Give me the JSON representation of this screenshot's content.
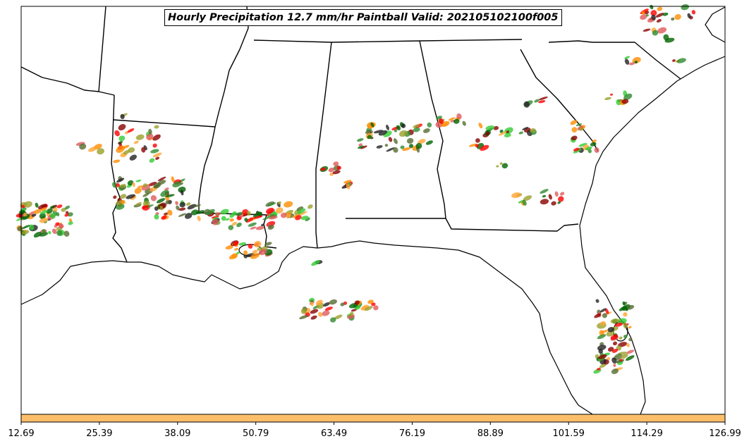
{
  "map": {
    "title": "Hourly Precipitation 12.7 mm/hr Paintball Valid: 202105102100f005",
    "region": "Southeastern United States",
    "colorbar": {
      "fill_color": "#FDBE6A",
      "tick_labels": [
        "12.69",
        "25.39",
        "38.09",
        "50.79",
        "63.49",
        "76.19",
        "88.89",
        "101.59",
        "114.29",
        "126.99"
      ]
    },
    "paintball_colors": [
      "#FF0000",
      "#E05A5A",
      "#FF8C00",
      "#FFA533",
      "#2E8B2E",
      "#006400",
      "#33CC33",
      "#8B0000",
      "#556B2F",
      "#9AA02A",
      "#222222"
    ],
    "colors": {
      "background": "#FFFFFF",
      "borders": "#000000"
    }
  }
}
